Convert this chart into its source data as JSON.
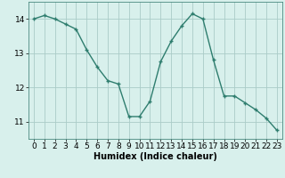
{
  "x": [
    0,
    1,
    2,
    3,
    4,
    5,
    6,
    7,
    8,
    9,
    10,
    11,
    12,
    13,
    14,
    15,
    16,
    17,
    18,
    19,
    20,
    21,
    22,
    23
  ],
  "y": [
    14.0,
    14.1,
    14.0,
    13.85,
    13.7,
    13.1,
    12.6,
    12.2,
    12.1,
    11.15,
    11.15,
    11.6,
    12.75,
    13.35,
    13.8,
    14.15,
    14.0,
    12.8,
    11.75,
    11.75,
    11.55,
    11.35,
    11.1,
    10.75
  ],
  "line_color": "#2e7d6e",
  "marker": "+",
  "marker_size": 3,
  "marker_linewidth": 1.0,
  "background_color": "#d8f0ec",
  "grid_color": "#aaccc8",
  "xlabel": "Humidex (Indice chaleur)",
  "xlabel_fontsize": 7,
  "tick_fontsize": 6.5,
  "ylim": [
    10.5,
    14.5
  ],
  "yticks": [
    11,
    12,
    13,
    14
  ],
  "xlim": [
    -0.5,
    23.5
  ],
  "xticks": [
    0,
    1,
    2,
    3,
    4,
    5,
    6,
    7,
    8,
    9,
    10,
    11,
    12,
    13,
    14,
    15,
    16,
    17,
    18,
    19,
    20,
    21,
    22,
    23
  ],
  "line_width": 1.0,
  "spine_color": "#4a8a80"
}
